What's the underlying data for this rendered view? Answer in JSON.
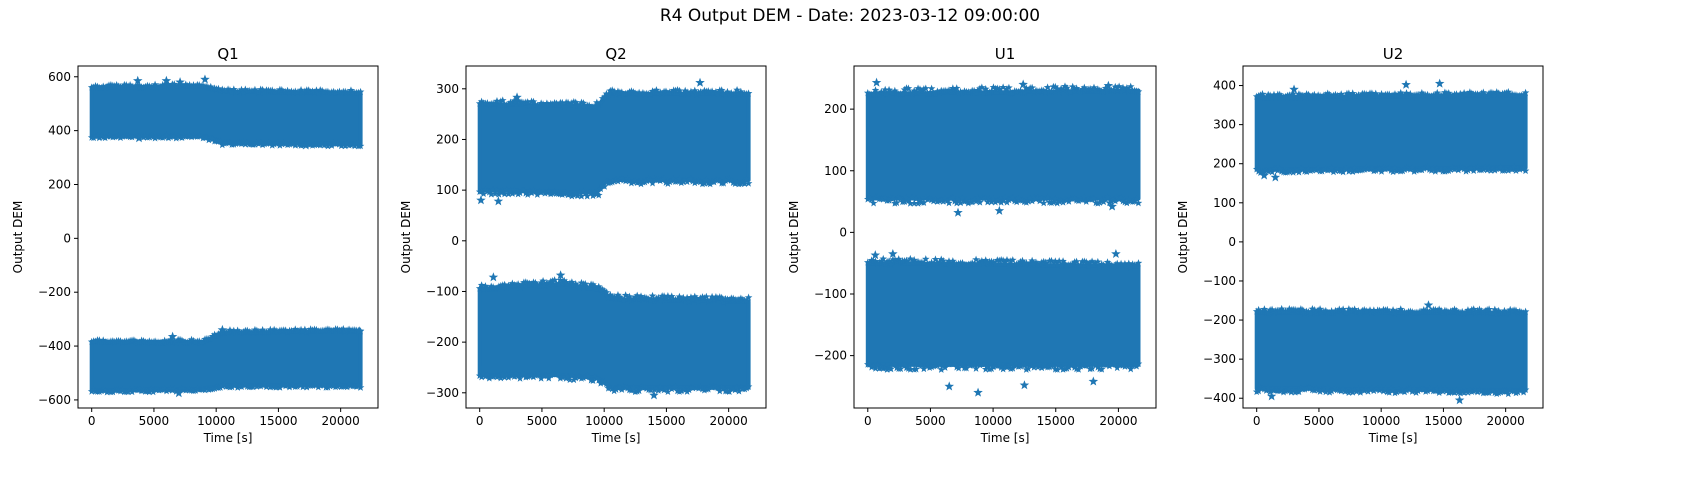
{
  "figure_title": "R4 Output DEM - Date: 2023-03-12 09:00:00",
  "chart_data": [
    {
      "type": "scatter",
      "title": "Q1",
      "xlabel": "Time [s]",
      "ylabel": "Output DEM",
      "marker": "star",
      "color": "#1f77b4",
      "xlim": [
        -1100,
        23000
      ],
      "ylim": [
        -630,
        640
      ],
      "xticks": [
        0,
        5000,
        10000,
        15000,
        20000
      ],
      "yticks": [
        -600,
        -400,
        -200,
        0,
        200,
        400,
        600
      ],
      "x_range": [
        0,
        21600
      ],
      "bands": [
        {
          "name": "positive",
          "x": [
            0,
            9000,
            10500,
            21600
          ],
          "upper": [
            560,
            565,
            545,
            540
          ],
          "lower": [
            380,
            380,
            355,
            350
          ]
        },
        {
          "name": "negative",
          "x": [
            0,
            9000,
            10500,
            21600
          ],
          "upper": [
            -385,
            -385,
            -350,
            -345
          ],
          "lower": [
            -565,
            -560,
            -545,
            -545
          ]
        }
      ],
      "outliers": [
        [
          3700,
          585
        ],
        [
          6000,
          585
        ],
        [
          7100,
          580
        ],
        [
          9100,
          590
        ],
        [
          3800,
          372
        ],
        [
          17200,
          345
        ],
        [
          7000,
          -575
        ],
        [
          6500,
          -365
        ],
        [
          10500,
          -340
        ],
        [
          21500,
          -345
        ]
      ]
    },
    {
      "type": "scatter",
      "title": "Q2",
      "xlabel": "Time [s]",
      "ylabel": "Output DEM",
      "marker": "star",
      "color": "#1f77b4",
      "xlim": [
        -1100,
        23000
      ],
      "ylim": [
        -330,
        345
      ],
      "xticks": [
        0,
        5000,
        10000,
        15000,
        20000
      ],
      "yticks": [
        -300,
        -200,
        -100,
        0,
        100,
        200,
        300
      ],
      "x_range": [
        0,
        21600
      ],
      "bands": [
        {
          "name": "positive",
          "x": [
            0,
            9500,
            10200,
            21600
          ],
          "upper": [
            270,
            265,
            290,
            290
          ],
          "lower": [
            100,
            95,
            120,
            120
          ]
        },
        {
          "name": "negative",
          "x": [
            0,
            6500,
            9500,
            10500,
            21600
          ],
          "upper": [
            -95,
            -85,
            -95,
            -115,
            -120
          ],
          "lower": [
            -265,
            -265,
            -270,
            -290,
            -290
          ]
        }
      ],
      "outliers": [
        [
          3000,
          283
        ],
        [
          17700,
          312
        ],
        [
          100,
          80
        ],
        [
          1500,
          78
        ],
        [
          1100,
          -72
        ],
        [
          6500,
          -68
        ],
        [
          14000,
          -305
        ]
      ]
    },
    {
      "type": "scatter",
      "title": "U1",
      "xlabel": "Time [s]",
      "ylabel": "Output DEM",
      "marker": "star",
      "color": "#1f77b4",
      "xlim": [
        -1100,
        23000
      ],
      "ylim": [
        -285,
        270
      ],
      "xticks": [
        0,
        5000,
        10000,
        15000,
        20000
      ],
      "yticks": [
        -200,
        -100,
        0,
        100,
        200
      ],
      "x_range": [
        0,
        21600
      ],
      "bands": [
        {
          "name": "positive",
          "x": [
            0,
            21600
          ],
          "upper": [
            225,
            230
          ],
          "lower": [
            55,
            55
          ]
        },
        {
          "name": "negative",
          "x": [
            0,
            21600
          ],
          "upper": [
            -50,
            -55
          ],
          "lower": [
            -215,
            -215
          ]
        }
      ],
      "outliers": [
        [
          700,
          243
        ],
        [
          12400,
          240
        ],
        [
          19200,
          238
        ],
        [
          7200,
          32
        ],
        [
          10500,
          35
        ],
        [
          19500,
          42
        ],
        [
          600,
          -37
        ],
        [
          2000,
          -35
        ],
        [
          19800,
          -35
        ],
        [
          6500,
          -250
        ],
        [
          8800,
          -260
        ],
        [
          12500,
          -248
        ],
        [
          18000,
          -242
        ]
      ]
    },
    {
      "type": "scatter",
      "title": "U2",
      "xlabel": "Time [s]",
      "ylabel": "Output DEM",
      "marker": "star",
      "color": "#1f77b4",
      "xlim": [
        -1100,
        23000
      ],
      "ylim": [
        -425,
        450
      ],
      "xticks": [
        0,
        5000,
        10000,
        15000,
        20000
      ],
      "yticks": [
        -400,
        -300,
        -200,
        -100,
        0,
        100,
        200,
        300,
        400
      ],
      "x_range": [
        0,
        21600
      ],
      "bands": [
        {
          "name": "positive",
          "x": [
            0,
            21600
          ],
          "upper": [
            370,
            375
          ],
          "lower": [
            185,
            190
          ]
        },
        {
          "name": "negative",
          "x": [
            0,
            21600
          ],
          "upper": [
            -180,
            -182
          ],
          "lower": [
            -375,
            -380
          ]
        }
      ],
      "outliers": [
        [
          14700,
          405
        ],
        [
          12000,
          402
        ],
        [
          3000,
          390
        ],
        [
          1500,
          165
        ],
        [
          600,
          170
        ],
        [
          13800,
          -162
        ],
        [
          16300,
          -405
        ],
        [
          1200,
          -395
        ]
      ]
    }
  ]
}
